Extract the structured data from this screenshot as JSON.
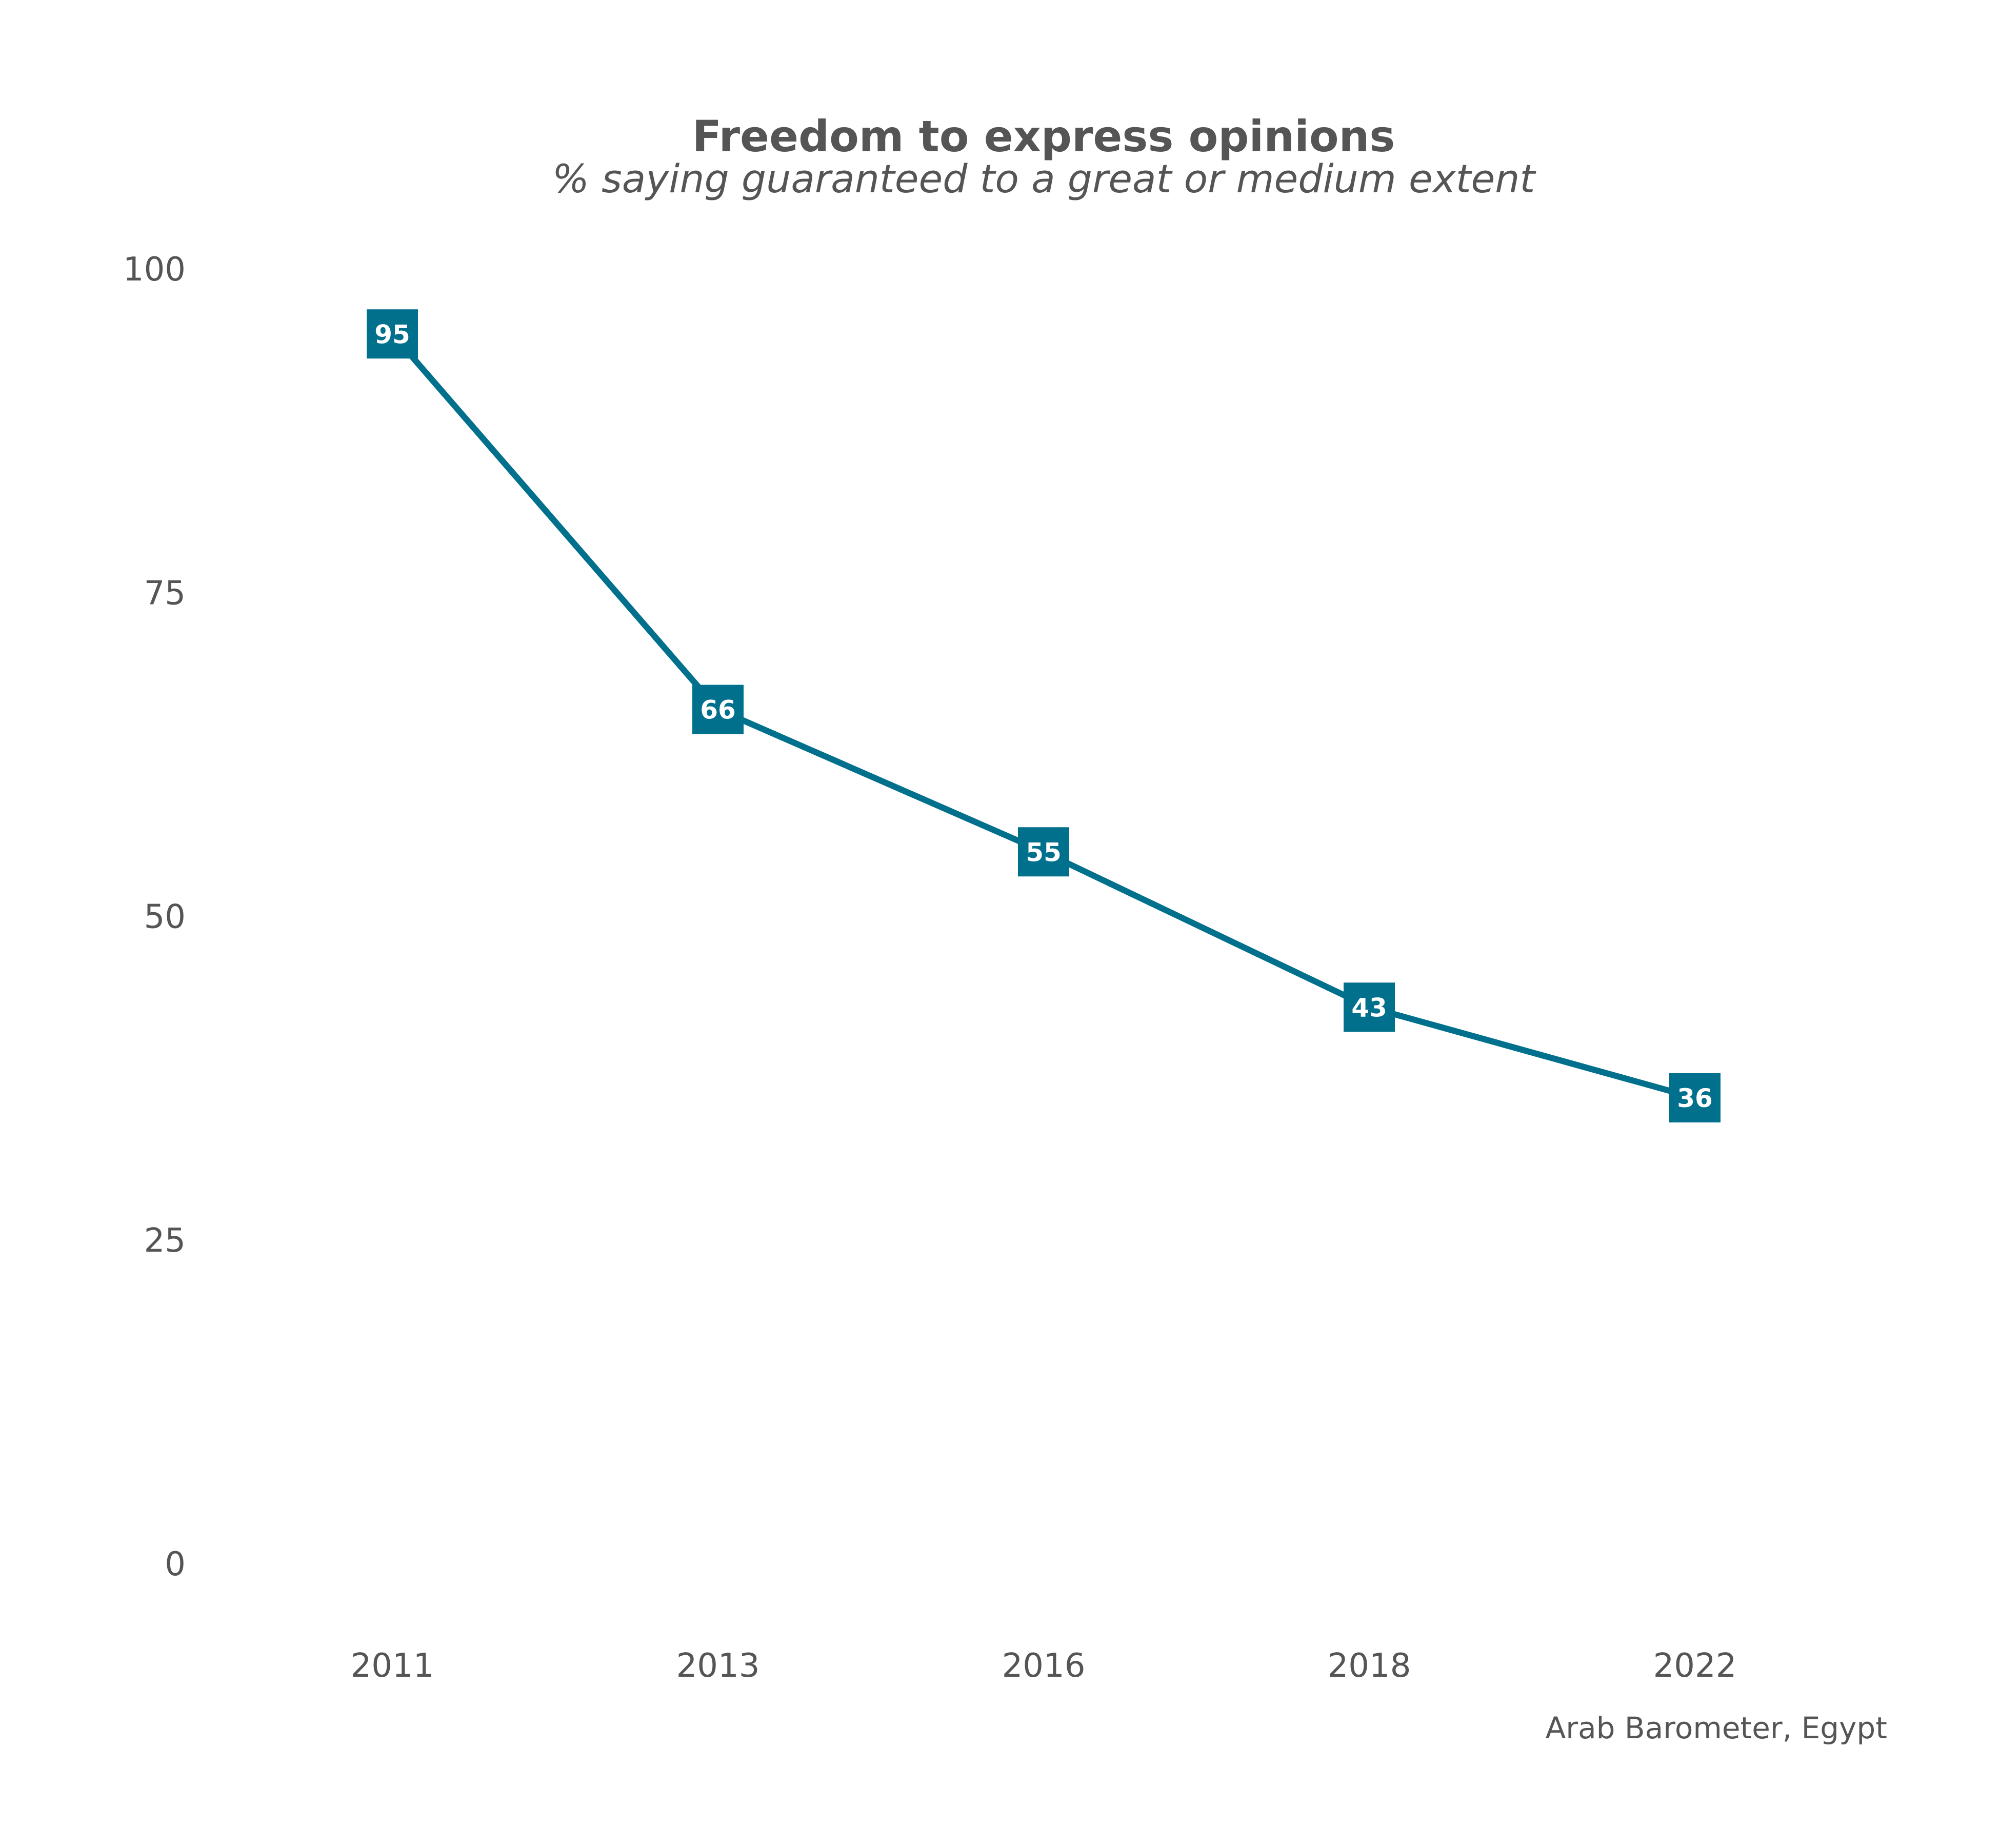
{
  "chart_data": {
    "type": "line",
    "title": "Freedom to express opinions",
    "subtitle": "% saying guaranteed to a great or medium extent",
    "xlabel": "",
    "ylabel": "",
    "x": [
      "2011",
      "2013",
      "2016",
      "2018",
      "2022"
    ],
    "series": [
      {
        "values": [
          95,
          66,
          55,
          43,
          36
        ],
        "color": "#00708c"
      }
    ],
    "data_labels": [
      "95",
      "66",
      "55",
      "43",
      "36"
    ],
    "ylim": [
      0,
      100
    ],
    "y_ticks": [
      0,
      25,
      50,
      75,
      100
    ],
    "y_tick_labels": [
      "0",
      "25",
      "50",
      "75",
      "100"
    ],
    "grid": false,
    "legend": "none",
    "source": "Arab Barometer, Egypt"
  }
}
